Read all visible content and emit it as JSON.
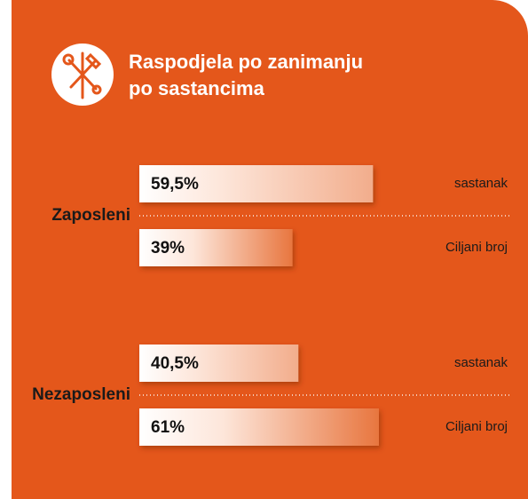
{
  "chart_data": {
    "type": "bar",
    "orientation": "horizontal",
    "title": "Raspodjela po zanimanju po sastancima",
    "categories": [
      "Zaposleni",
      "Nezaposleni"
    ],
    "series": [
      {
        "name": "sastanak",
        "color": "#f2ad8c",
        "values": [
          59.5,
          40.5
        ],
        "value_labels": [
          "59,5%",
          "40,5%"
        ]
      },
      {
        "name": "Ciljani broj",
        "color": "#e8763f",
        "values": [
          39,
          61
        ],
        "value_labels": [
          "39%",
          "61%"
        ]
      }
    ]
  }
}
